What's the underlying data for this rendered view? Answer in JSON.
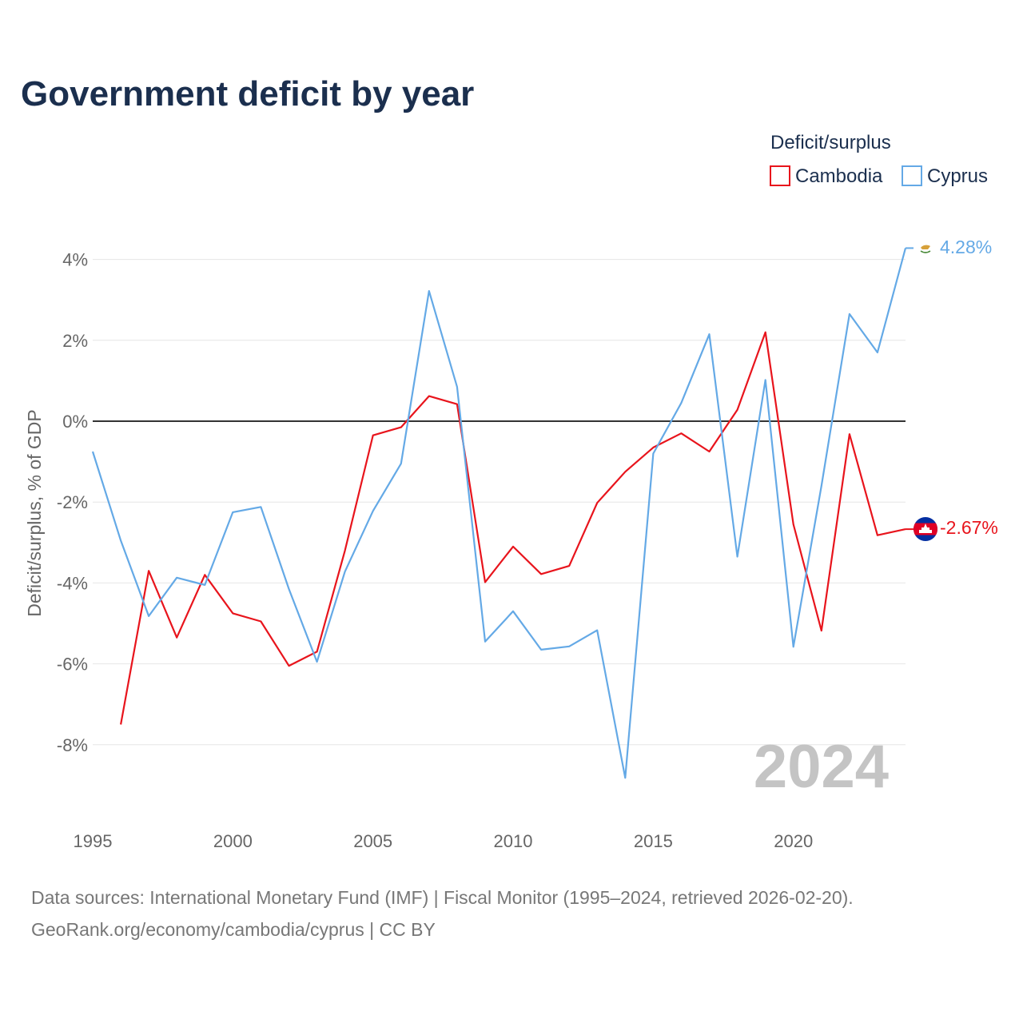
{
  "chart_data": {
    "type": "line",
    "title": "Government deficit by year",
    "ylabel": "Deficit/surplus, % of GDP",
    "xlabel": "",
    "ylim": [
      -10,
      5
    ],
    "xlim": [
      1995,
      2024
    ],
    "y_ticks": [
      4,
      2,
      0,
      -2,
      -4,
      -6,
      -8
    ],
    "y_tick_labels": [
      "4%",
      "2%",
      "0%",
      "-2%",
      "-4%",
      "-6%",
      "-8%"
    ],
    "x_ticks": [
      1995,
      2000,
      2005,
      2010,
      2015,
      2020
    ],
    "x_tick_labels": [
      "1995",
      "2000",
      "2005",
      "2010",
      "2015",
      "2020"
    ],
    "legend_title": "Deficit/surplus",
    "legend_position": "top-right",
    "watermark": "2024",
    "series": [
      {
        "name": "Cambodia",
        "color": "#e8141c",
        "end_label": "-2.67%",
        "flag_icon": "cambodia-flag-icon",
        "x": [
          1996,
          1997,
          1998,
          1999,
          2000,
          2001,
          2002,
          2003,
          2004,
          2005,
          2006,
          2007,
          2008,
          2009,
          2010,
          2011,
          2012,
          2013,
          2014,
          2015,
          2016,
          2017,
          2018,
          2019,
          2020,
          2021,
          2022,
          2023,
          2024
        ],
        "values": [
          -7.5,
          -3.7,
          -5.35,
          -3.8,
          -4.75,
          -4.95,
          -6.05,
          -5.7,
          -3.2,
          -0.35,
          -0.15,
          0.62,
          0.42,
          -3.98,
          -3.1,
          -3.78,
          -3.58,
          -2.02,
          -1.25,
          -0.65,
          -0.3,
          -0.75,
          0.28,
          2.2,
          -2.55,
          -5.18,
          -0.32,
          -2.82,
          -2.67
        ]
      },
      {
        "name": "Cyprus",
        "color": "#64a9e6",
        "end_label": "4.28%",
        "flag_icon": "cyprus-flag-icon",
        "x": [
          1995,
          1996,
          1997,
          1998,
          1999,
          2000,
          2001,
          2002,
          2003,
          2004,
          2005,
          2006,
          2007,
          2008,
          2009,
          2010,
          2011,
          2012,
          2013,
          2014,
          2015,
          2016,
          2017,
          2018,
          2019,
          2020,
          2021,
          2022,
          2023,
          2024
        ],
        "values": [
          -0.75,
          -2.95,
          -4.82,
          -3.87,
          -4.05,
          -2.25,
          -2.12,
          -4.15,
          -5.95,
          -3.72,
          -2.22,
          -1.05,
          3.22,
          0.85,
          -5.45,
          -4.7,
          -5.65,
          -5.57,
          -5.17,
          -8.82,
          -0.8,
          0.45,
          2.15,
          -3.35,
          1.02,
          -5.58,
          -1.6,
          2.65,
          1.7,
          4.28
        ]
      }
    ]
  },
  "source": {
    "line1": "Data sources: International Monetary Fund (IMF) | Fiscal Monitor (1995–2024, retrieved 2026-02-20).",
    "line2": "GeoRank.org/economy/cambodia/cyprus | CC BY"
  }
}
